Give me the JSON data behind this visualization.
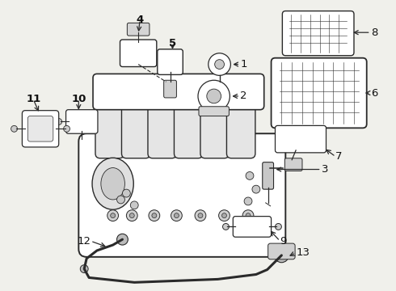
{
  "bg_color": "#f0f0eb",
  "line_color": "#2a2a2a",
  "label_color": "#111111",
  "bold_labels": [
    "4",
    "5",
    "10",
    "11"
  ],
  "labels": [
    "1",
    "2",
    "3",
    "4",
    "5",
    "6",
    "7",
    "8",
    "9",
    "10",
    "11",
    "12",
    "13"
  ]
}
